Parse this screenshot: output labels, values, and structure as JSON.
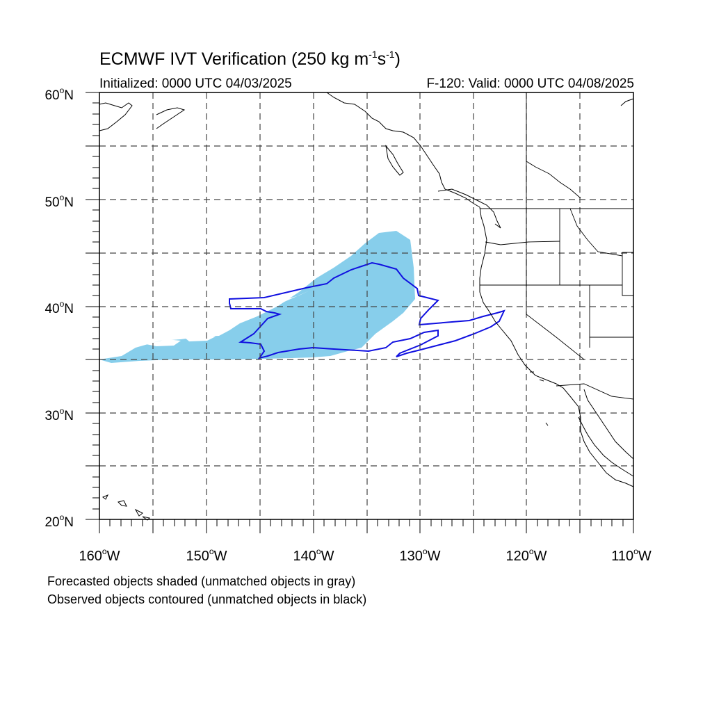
{
  "title": {
    "main": "ECMWF IVT Verification (250 kg m",
    "exp1": "-1",
    "mid": "s",
    "exp2": "-1",
    "close": ")"
  },
  "initialized": "Initialized: 0000 UTC 04/03/2025",
  "valid": "F-120: Valid: 0000 UTC 04/08/2025",
  "lat_labels": [
    "60",
    "50",
    "40",
    "30",
    "20"
  ],
  "lat_suffix": "N",
  "lon_labels": [
    "160",
    "150",
    "140",
    "130",
    "120",
    "110"
  ],
  "lon_suffix": "W",
  "degree_symbol": "o",
  "footnotes": [
    "Forecasted objects shaded (unmatched objects in gray)",
    "Observed objects contoured (unmatched objects in black)"
  ],
  "colors": {
    "forecast_fill": "#87ceeb",
    "observed_contour": "#1010e0",
    "coastline": "#000000",
    "gridline": "#444444"
  },
  "map": {
    "lat_range": [
      20,
      60
    ],
    "lon_range": [
      -160,
      -110
    ],
    "grid_spacing_deg": 5
  }
}
